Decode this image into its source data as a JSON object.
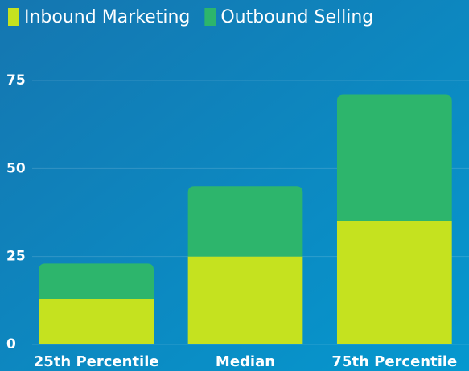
{
  "chart_data": {
    "type": "stacked-bar",
    "categories": [
      "25th Percentile",
      "Median",
      "75th Percentile"
    ],
    "series": [
      {
        "name": "Inbound Marketing",
        "color": "#c5e21f",
        "values": [
          13,
          25,
          35
        ]
      },
      {
        "name": "Outbound Selling",
        "color": "#2db56c",
        "values": [
          10,
          20,
          36
        ]
      }
    ],
    "ylim": [
      0,
      75
    ],
    "yticks": [
      0,
      25,
      50,
      75
    ],
    "grid": true,
    "legend": "top"
  }
}
